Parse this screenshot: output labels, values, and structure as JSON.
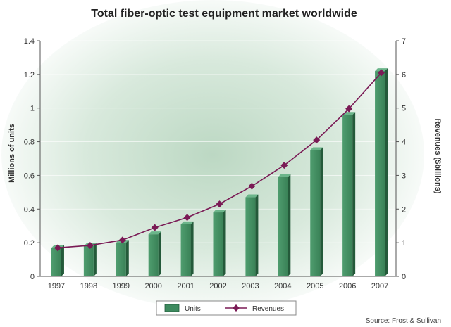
{
  "chart_data": {
    "type": "bar",
    "title": "Total fiber-optic test equipment market worldwide",
    "categories": [
      "1997",
      "1998",
      "1999",
      "2000",
      "2001",
      "2002",
      "2003",
      "2004",
      "2005",
      "2006",
      "2007"
    ],
    "series": [
      {
        "name": "Units",
        "type": "bar",
        "axis": "left",
        "values": [
          0.17,
          0.18,
          0.2,
          0.25,
          0.31,
          0.38,
          0.47,
          0.59,
          0.75,
          0.96,
          1.22
        ]
      },
      {
        "name": "Revenues",
        "type": "line",
        "axis": "right",
        "values": [
          0.85,
          0.92,
          1.08,
          1.45,
          1.75,
          2.15,
          2.68,
          3.3,
          4.05,
          4.98,
          6.05
        ]
      }
    ],
    "ylabel": "Millions of units",
    "ylim": [
      0,
      1.4
    ],
    "yticks": [
      "0",
      "0.2",
      "0.4",
      "0.6",
      "0.8",
      "1",
      "1.2",
      "1.4"
    ],
    "y2label": "Revenues ($billions)",
    "y2lim": [
      0,
      7
    ],
    "y2ticks": [
      "0",
      "1",
      "2",
      "3",
      "4",
      "5",
      "6",
      "7"
    ],
    "legend_position": "bottom-center",
    "source": "Source: Frost & Sullivan",
    "colors": {
      "bar": "#3d8a5e",
      "bar_dark": "#245a3a",
      "line": "#7a1a55",
      "background": "#cfe3d4"
    }
  }
}
